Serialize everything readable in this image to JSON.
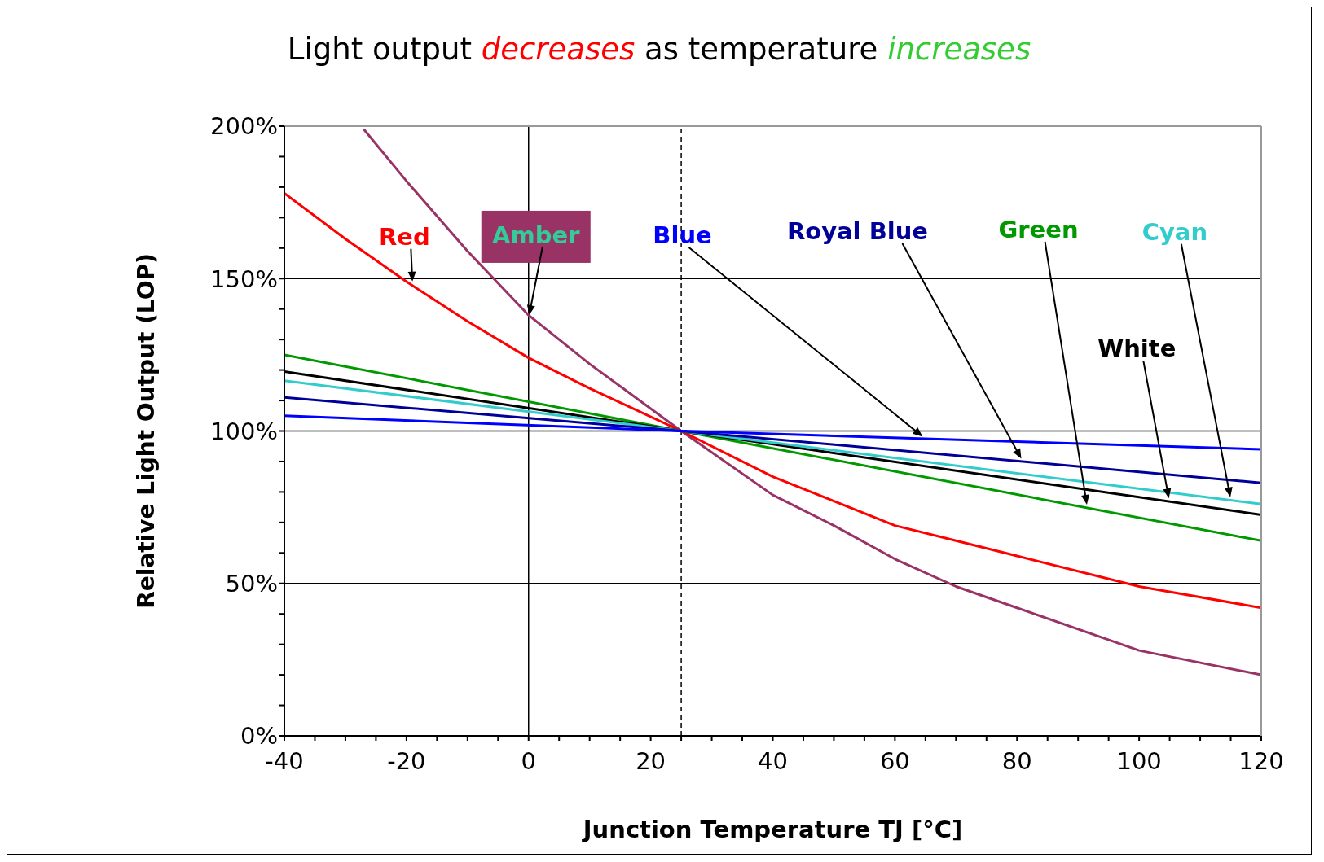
{
  "chart_data": {
    "type": "line",
    "title": "Light output decreases as temperature increases",
    "xlabel": "Junction Temperature TJ [°C]",
    "ylabel": "Relative Light Output (LOP)",
    "xlim": [
      -40,
      120
    ],
    "ylim": [
      0,
      200
    ],
    "xticks": [
      -40,
      {
        "value": -35,
        "label": null
      },
      {
        "value": -30,
        "label": null
      },
      {
        "value": -25,
        "label": null
      },
      -20,
      {
        "value": -15,
        "label": null
      },
      {
        "value": -10,
        "label": null
      },
      {
        "value": -5,
        "label": null
      },
      0,
      {
        "value": 5,
        "label": null
      },
      {
        "value": 10,
        "label": null
      },
      {
        "value": 15,
        "label": null
      },
      20,
      {
        "value": 25,
        "label": null
      },
      {
        "value": 30,
        "label": null
      },
      {
        "value": 35,
        "label": null
      },
      40,
      {
        "value": 45,
        "label": null
      },
      {
        "value": 50,
        "label": null
      },
      {
        "value": 55,
        "label": null
      },
      60,
      {
        "value": 65,
        "label": null
      },
      {
        "value": 70,
        "label": null
      },
      {
        "value": 75,
        "label": null
      },
      80,
      {
        "value": 85,
        "label": null
      },
      {
        "value": 90,
        "label": null
      },
      {
        "value": 95,
        "label": null
      },
      100,
      {
        "value": 105,
        "label": null
      },
      {
        "value": 110,
        "label": null
      },
      {
        "value": 115,
        "label": null
      },
      120
    ],
    "yticks": [
      {
        "value": 0,
        "label": "0%"
      },
      {
        "value": 10,
        "label": null
      },
      {
        "value": 20,
        "label": null
      },
      {
        "value": 30,
        "label": null
      },
      {
        "value": 40,
        "label": null
      },
      {
        "value": 50,
        "label": "50%"
      },
      {
        "value": 60,
        "label": null
      },
      {
        "value": 70,
        "label": null
      },
      {
        "value": 80,
        "label": null
      },
      {
        "value": 90,
        "label": null
      },
      {
        "value": 100,
        "label": "100%"
      },
      {
        "value": 110,
        "label": null
      },
      {
        "value": 120,
        "label": null
      },
      {
        "value": 130,
        "label": null
      },
      {
        "value": 140,
        "label": null
      },
      {
        "value": 150,
        "label": "150%"
      },
      {
        "value": 160,
        "label": null
      },
      {
        "value": 170,
        "label": null
      },
      {
        "value": 180,
        "label": null
      },
      {
        "value": 190,
        "label": null
      },
      {
        "value": 200,
        "label": "200%"
      }
    ],
    "grid": "y",
    "marker": "none",
    "line_style": "solid",
    "series": [
      {
        "color": "#993366",
        "x": [
          -27,
          -20,
          -10,
          0,
          10,
          25,
          40,
          50,
          60,
          70,
          80,
          100,
          120
        ],
        "values": [
          199,
          182,
          159,
          138,
          122,
          100,
          79,
          69,
          58,
          49,
          42,
          28,
          20
        ]
      },
      {
        "color": "#ff0000",
        "x": [
          -40,
          -30,
          -20,
          -10,
          0,
          10,
          25,
          40,
          60,
          70,
          80,
          100,
          120
        ],
        "values": [
          178,
          163,
          149,
          136,
          124,
          114,
          100,
          85,
          69,
          64,
          59,
          49,
          42
        ]
      },
      {
        "color": "#009900",
        "x": [
          -40,
          25,
          120
        ],
        "values": [
          125,
          100,
          64
        ]
      },
      {
        "color": "#000000",
        "x": [
          -40,
          25,
          120
        ],
        "values": [
          119.5,
          100,
          72.5
        ]
      },
      {
        "color": "#33cccc",
        "x": [
          -40,
          25,
          120
        ],
        "values": [
          116.5,
          100,
          76
        ]
      },
      {
        "color": "#000099",
        "x": [
          -40,
          25,
          120
        ],
        "values": [
          111,
          100,
          83
        ]
      },
      {
        "color": "#0000ff",
        "x": [
          -40,
          25,
          120
        ],
        "values": [
          105,
          100,
          94
        ]
      }
    ],
    "ref_lines": [
      {
        "axis": "x",
        "value": 0,
        "label": null,
        "color": "#000000",
        "line_style": "solid"
      },
      {
        "axis": "x",
        "value": 25,
        "label": null,
        "color": "#000000",
        "line_style": "dashed"
      }
    ],
    "annotations": [
      {
        "text": "Amber",
        "x": 0,
        "y": 137
      },
      {
        "text": "Red",
        "x": -19,
        "y": 148
      },
      "Green",
      "White",
      "Cyan",
      "Royal Blue",
      "Blue"
    ]
  }
}
